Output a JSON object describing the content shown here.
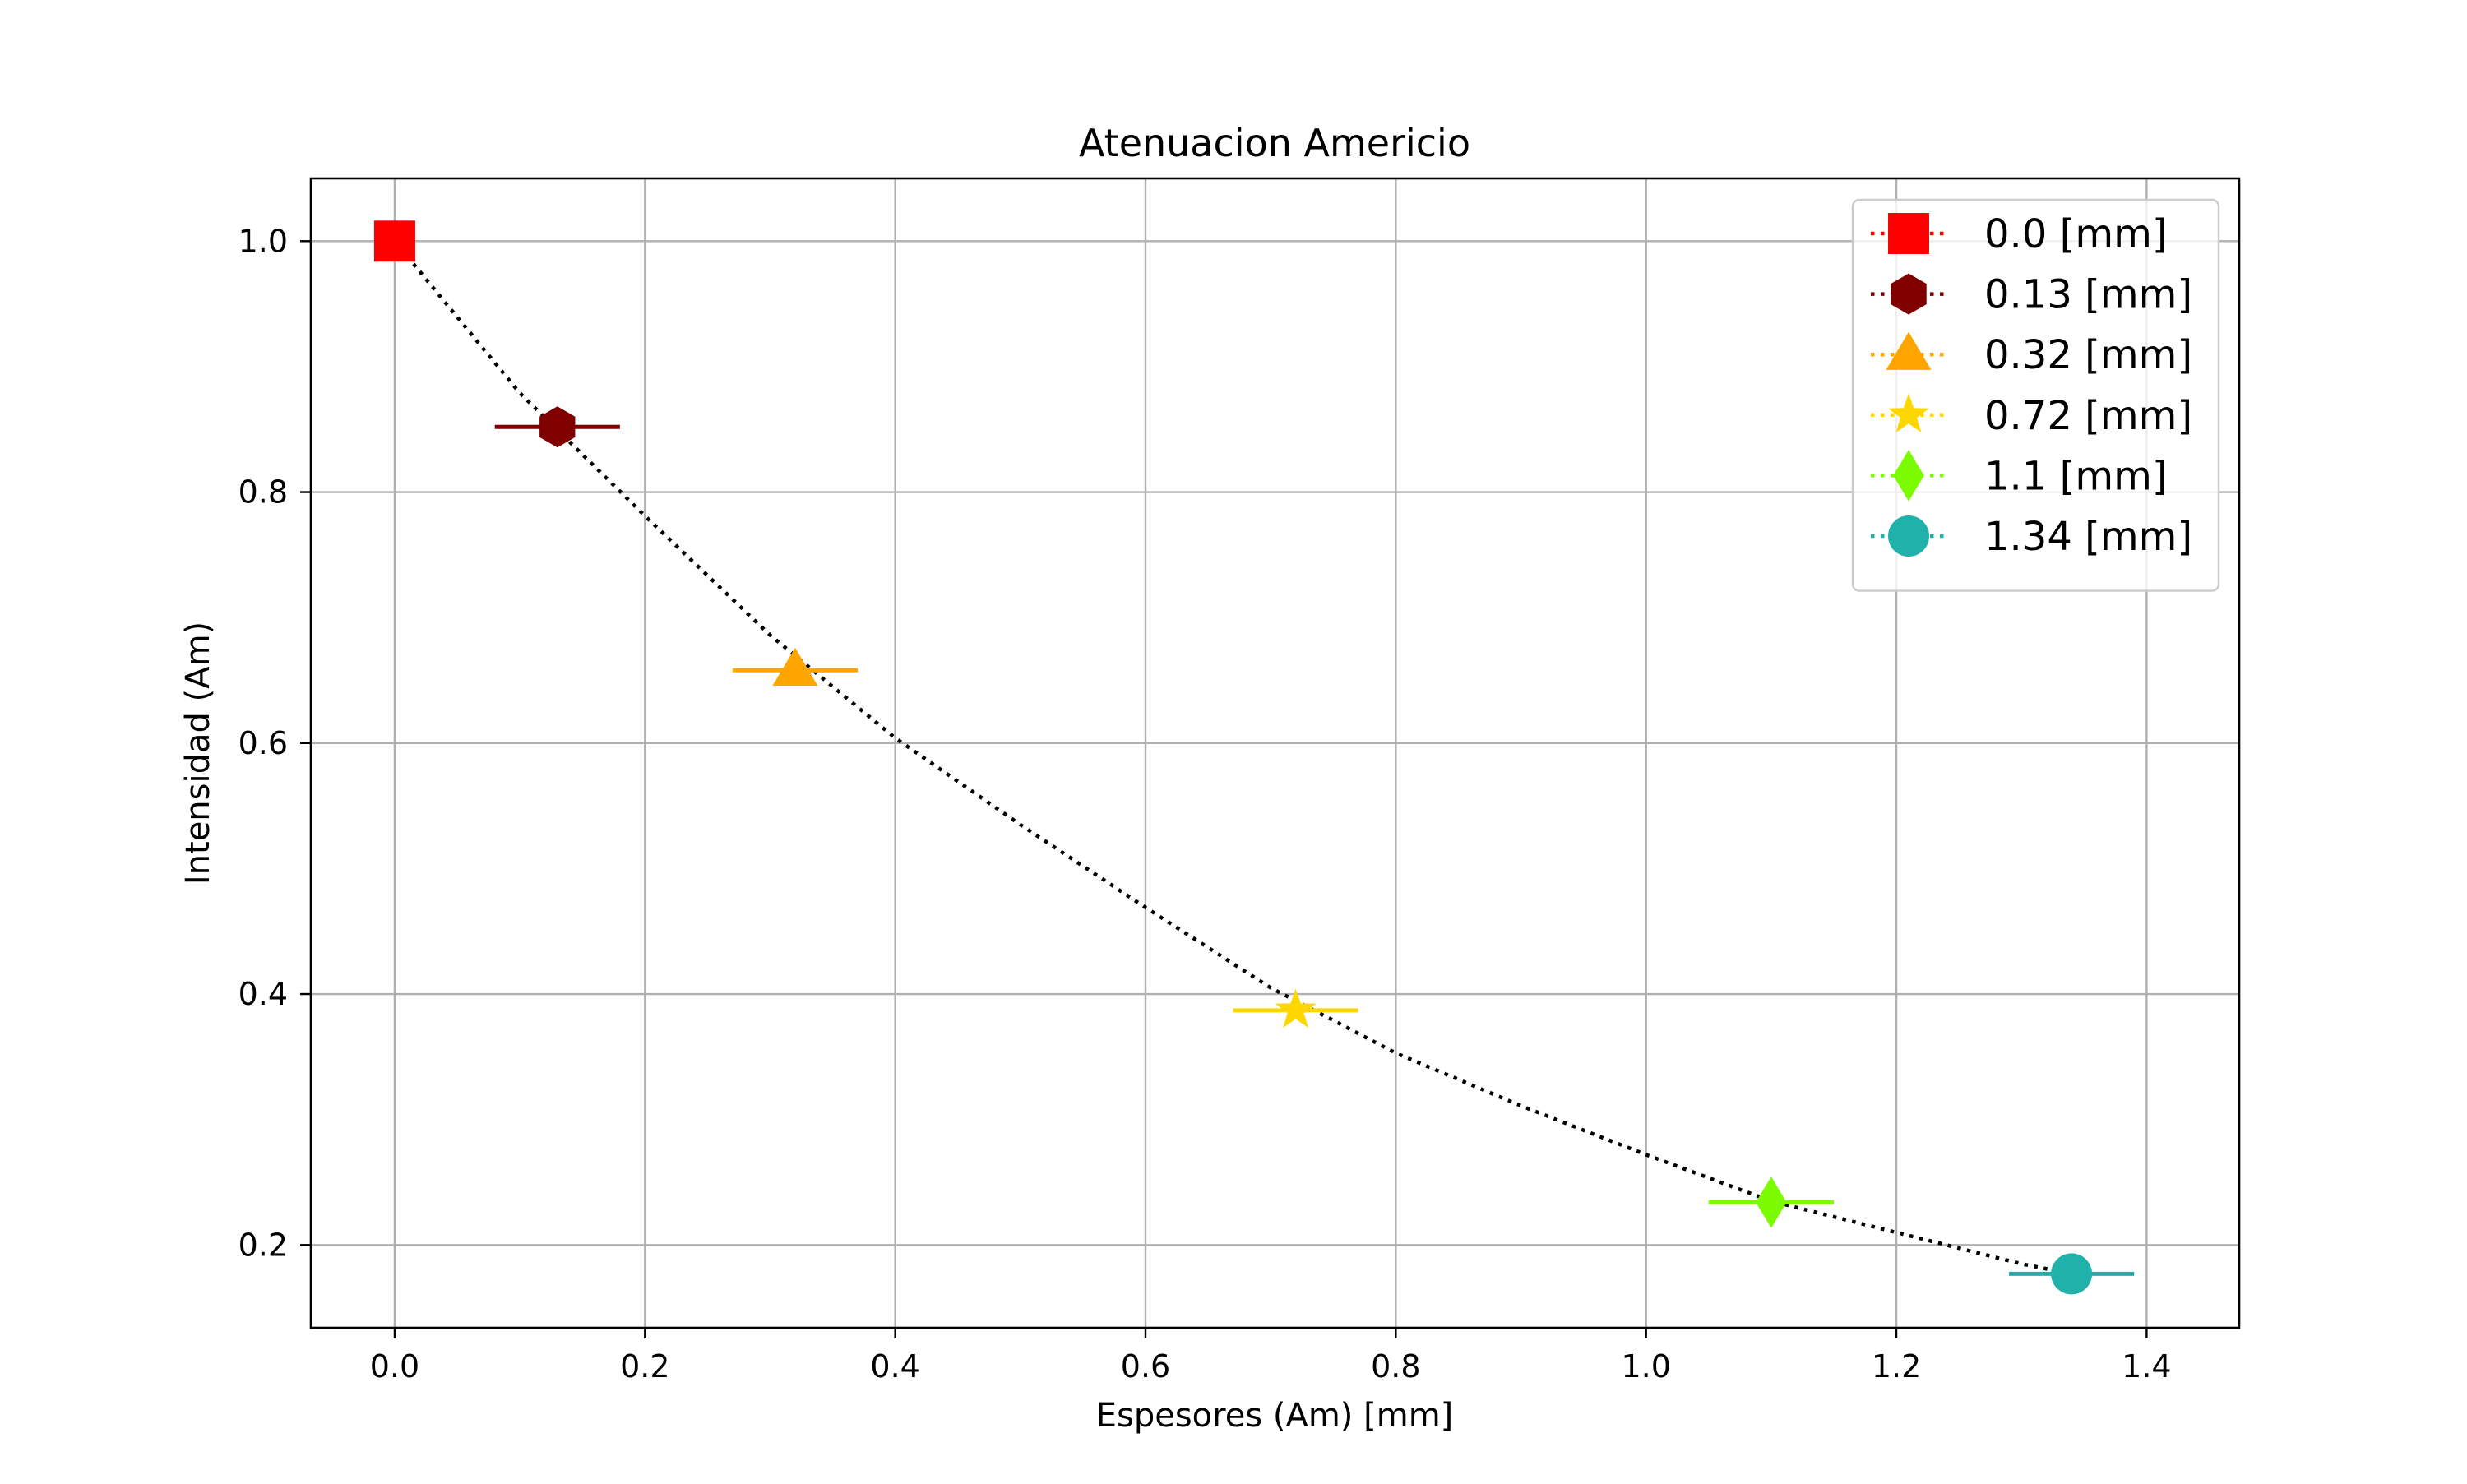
{
  "chart_data": {
    "type": "scatter",
    "title": "Atenuacion Americio",
    "xlabel": "Espesores (Am) [mm]",
    "ylabel": "Intensidad (Am)",
    "xlim": [
      -0.067,
      1.474
    ],
    "ylim": [
      0.134,
      1.05
    ],
    "xticks": [
      0.0,
      0.2,
      0.4,
      0.6,
      0.8,
      1.0,
      1.2,
      1.4
    ],
    "xtick_labels": [
      "0.0",
      "0.2",
      "0.4",
      "0.6",
      "0.8",
      "1.0",
      "1.2",
      "1.4"
    ],
    "yticks": [
      0.2,
      0.4,
      0.6,
      0.8,
      1.0
    ],
    "ytick_labels": [
      "0.2",
      "0.4",
      "0.6",
      "0.8",
      "1.0"
    ],
    "grid": true,
    "legend_position": "top-right",
    "fit_curve": {
      "style": "dotted",
      "color": "#000000",
      "x": [
        0.0,
        0.1,
        0.2,
        0.3,
        0.4,
        0.5,
        0.6,
        0.7,
        0.8,
        0.9,
        1.0,
        1.1,
        1.2,
        1.3,
        1.34
      ],
      "y": [
        1.0,
        0.879,
        0.781,
        0.686,
        0.604,
        0.535,
        0.469,
        0.405,
        0.353,
        0.311,
        0.272,
        0.235,
        0.21,
        0.185,
        0.177
      ]
    },
    "series": [
      {
        "name": "0.0 [mm]",
        "x": 0.0,
        "y": 1.0,
        "xerr": 0.0,
        "marker": "square",
        "color": "#ff0000"
      },
      {
        "name": "0.13 [mm]",
        "x": 0.13,
        "y": 0.852,
        "xerr": 0.05,
        "marker": "hexagon",
        "color": "#800000"
      },
      {
        "name": "0.32 [mm]",
        "x": 0.32,
        "y": 0.658,
        "xerr": 0.05,
        "marker": "triangle",
        "color": "#ffa500"
      },
      {
        "name": "0.72 [mm]",
        "x": 0.72,
        "y": 0.387,
        "xerr": 0.05,
        "marker": "star",
        "color": "#ffd700"
      },
      {
        "name": "1.1 [mm]",
        "x": 1.1,
        "y": 0.234,
        "xerr": 0.05,
        "marker": "diamond",
        "color": "#7cfc00"
      },
      {
        "name": "1.34 [mm]",
        "x": 1.34,
        "y": 0.177,
        "xerr": 0.05,
        "marker": "circle",
        "color": "#20b2aa"
      }
    ]
  }
}
